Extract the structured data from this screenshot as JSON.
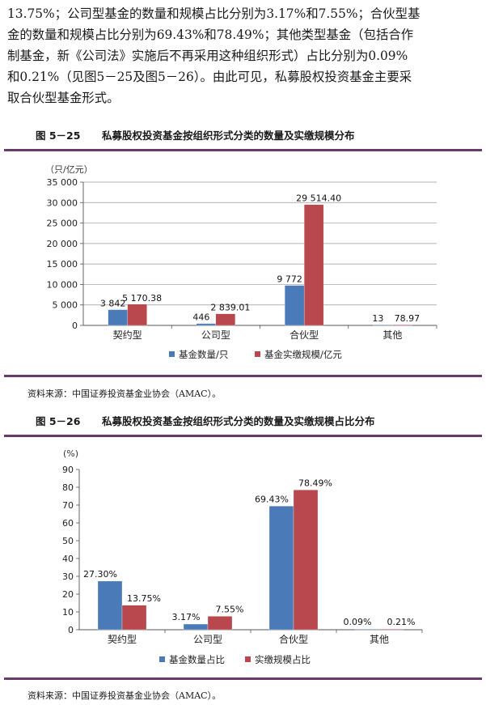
{
  "paragraph": {
    "lines": [
      "13.75%；公司型基金的数量和规模占比分别为3.17%和7.55%；合伙型基",
      "金的数量和规模占比分别为69.43%和78.49%；其他类型基金（包括合作",
      "制基金，新《公司法》实施后不再采用这种组织形式）占比分别为0.09%",
      "和0.21%（见图5－25及图5－26）。由此可见，私募股权投资基金主要采",
      "取合伙型基金形式。"
    ]
  },
  "figure1": {
    "number": "图 5－25",
    "title": "私募股权投资基金按组织形式分类的数量及实缴规模分布",
    "source": "资料来源：中国证券投资基金业协会（AMAC）。"
  },
  "figure2": {
    "number": "图 5－26",
    "title": "私募股权投资基金按组织形式分类的数量及实缴规模占比分布",
    "source": "资料来源：中国证券投资基金业协会（AMAC）。"
  },
  "colors": {
    "series1": "#4a7ab8",
    "series2": "#b8474e",
    "rule": "#6b3a6c"
  },
  "chart_data": [
    {
      "type": "bar",
      "ylabel": "（只/亿元）",
      "ylim": [
        0,
        35000
      ],
      "ticks": [
        0,
        5000,
        10000,
        15000,
        20000,
        25000,
        30000,
        35000
      ],
      "tick_labels": [
        "0",
        "5 000",
        "10 000",
        "15 000",
        "20 000",
        "25 000",
        "30 000",
        "35 000"
      ],
      "categories": [
        "契约型",
        "公司型",
        "合伙型",
        "其他"
      ],
      "series": [
        {
          "name": "基金数量/只",
          "values": [
            3842,
            446,
            9772,
            13
          ],
          "labels": [
            "3 842",
            "446",
            "9 772",
            "13"
          ]
        },
        {
          "name": "基金实缴规模/亿元",
          "values": [
            5170.38,
            2839.01,
            29514.4,
            78.97
          ],
          "labels": [
            "5 170.38",
            "2 839.01",
            "29 514.40",
            "78.97"
          ]
        }
      ],
      "legend": "bottom",
      "grid": true
    },
    {
      "type": "bar",
      "ylabel": "(%)",
      "ylim": [
        0,
        90
      ],
      "ticks": [
        0,
        10,
        20,
        30,
        40,
        50,
        60,
        70,
        80,
        90
      ],
      "tick_labels": [
        "0",
        "10",
        "20",
        "30",
        "40",
        "50",
        "60",
        "70",
        "80",
        "90"
      ],
      "categories": [
        "契约型",
        "公司型",
        "合伙型",
        "其他"
      ],
      "series": [
        {
          "name": "基金数量占比",
          "values": [
            27.3,
            3.17,
            69.43,
            0.09
          ],
          "labels": [
            "27.30%",
            "3.17%",
            "69.43%",
            "0.09%"
          ]
        },
        {
          "name": "实缴规模占比",
          "values": [
            13.75,
            7.55,
            78.49,
            0.21
          ],
          "labels": [
            "13.75%",
            "7.55%",
            "78.49%",
            "0.21%"
          ]
        }
      ],
      "legend": "bottom",
      "grid": false
    }
  ]
}
